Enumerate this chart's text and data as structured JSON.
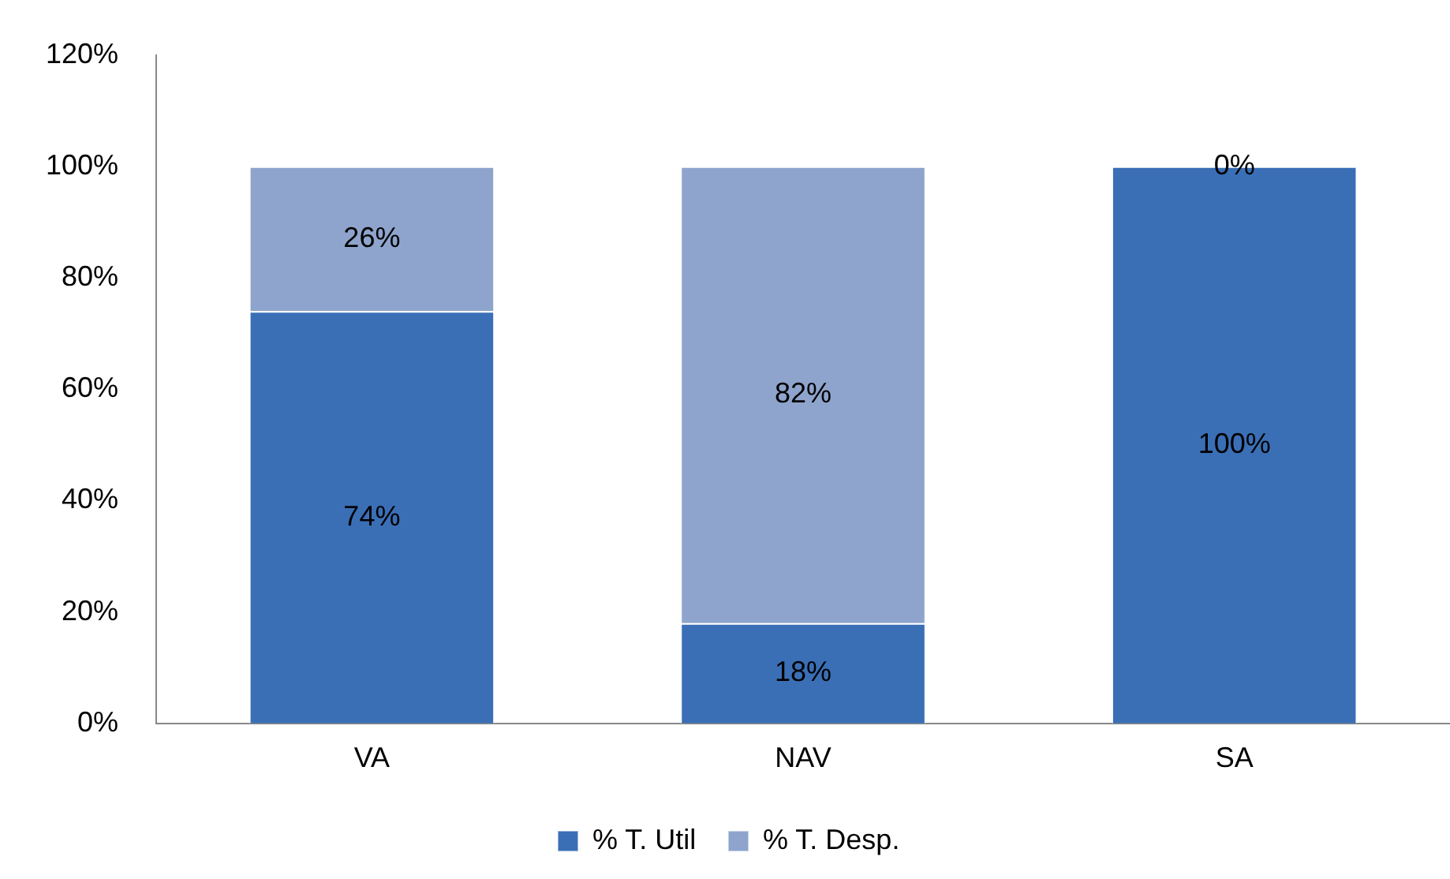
{
  "chart_data": {
    "type": "bar",
    "stacked": true,
    "categories": [
      "VA",
      "NAV",
      "SA"
    ],
    "series": [
      {
        "name": "% T. Util",
        "color": "#3a6fb6",
        "values": [
          74,
          18,
          100
        ],
        "value_labels": [
          "74%",
          "18%",
          "100%"
        ]
      },
      {
        "name": "% T. Desp.",
        "color": "#8ea4cc",
        "values": [
          26,
          82,
          0
        ],
        "value_labels": [
          "26%",
          "82%",
          "0%"
        ]
      }
    ],
    "ylim": [
      0,
      120
    ],
    "yticks": [
      {
        "value": 0,
        "label": "0%"
      },
      {
        "value": 20,
        "label": "20%"
      },
      {
        "value": 40,
        "label": "40%"
      },
      {
        "value": 60,
        "label": "60%"
      },
      {
        "value": 80,
        "label": "80%"
      },
      {
        "value": 100,
        "label": "100%"
      },
      {
        "value": 120,
        "label": "120%"
      }
    ],
    "grid": false,
    "legend": "bottom"
  }
}
